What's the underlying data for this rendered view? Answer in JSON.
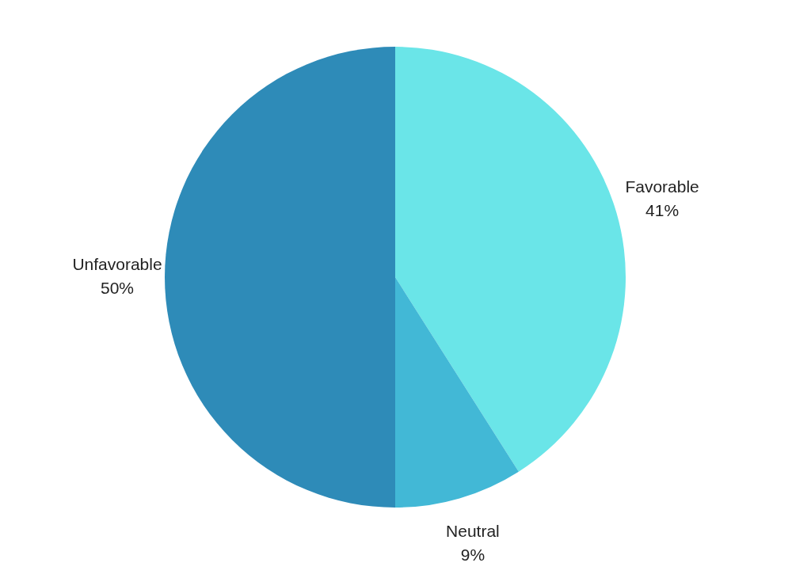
{
  "chart_data": {
    "type": "pie",
    "categories": [
      "Favorable",
      "Neutral",
      "Unfavorable"
    ],
    "values": [
      41,
      9,
      50
    ],
    "colors": [
      "#6ae5e8",
      "#42b8d6",
      "#2e8bb8"
    ],
    "value_labels": [
      "41%",
      "9%",
      "50%"
    ],
    "legend": false
  }
}
